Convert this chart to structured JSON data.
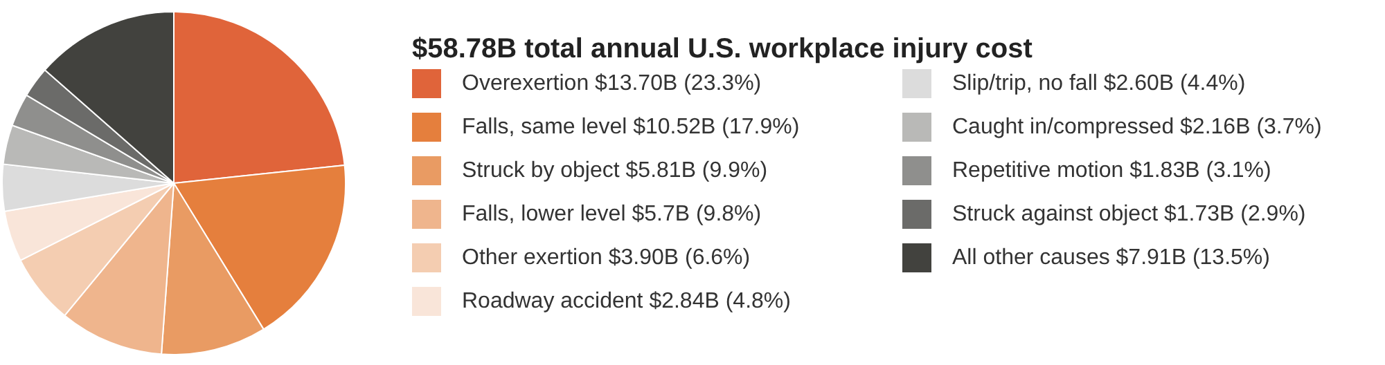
{
  "chart_data": {
    "type": "pie",
    "title": "$58.78B total annual U.S. workplace injury cost",
    "categories": [
      "Overexertion $13.70B (23.3%)",
      "Falls, same level $10.52B (17.9%)",
      "Struck by object $5.81B (9.9%)",
      "Falls, lower level $5.7B (9.8%)",
      "Other exertion $3.90B (6.6%)",
      "Roadway accident $2.84B (4.8%)",
      "Slip/trip, no fall $2.60B (4.4%)",
      "Caught in/compressed $2.16B (3.7%)",
      "Repetitive motion $1.83B (3.1%)",
      "Struck against object $1.73B (2.9%)",
      "All other causes $7.91B (13.5%)"
    ],
    "values": [
      23.3,
      17.9,
      9.9,
      9.8,
      6.6,
      4.8,
      4.4,
      3.7,
      3.1,
      2.9,
      13.5
    ],
    "colors": [
      "#e0643a",
      "#e57f3d",
      "#e99b63",
      "#efb58d",
      "#f4cdb1",
      "#f9e5d9",
      "#dcdcdc",
      "#b9b9b7",
      "#8f8f8d",
      "#6b6b69",
      "#42423e"
    ],
    "legend": "right"
  }
}
